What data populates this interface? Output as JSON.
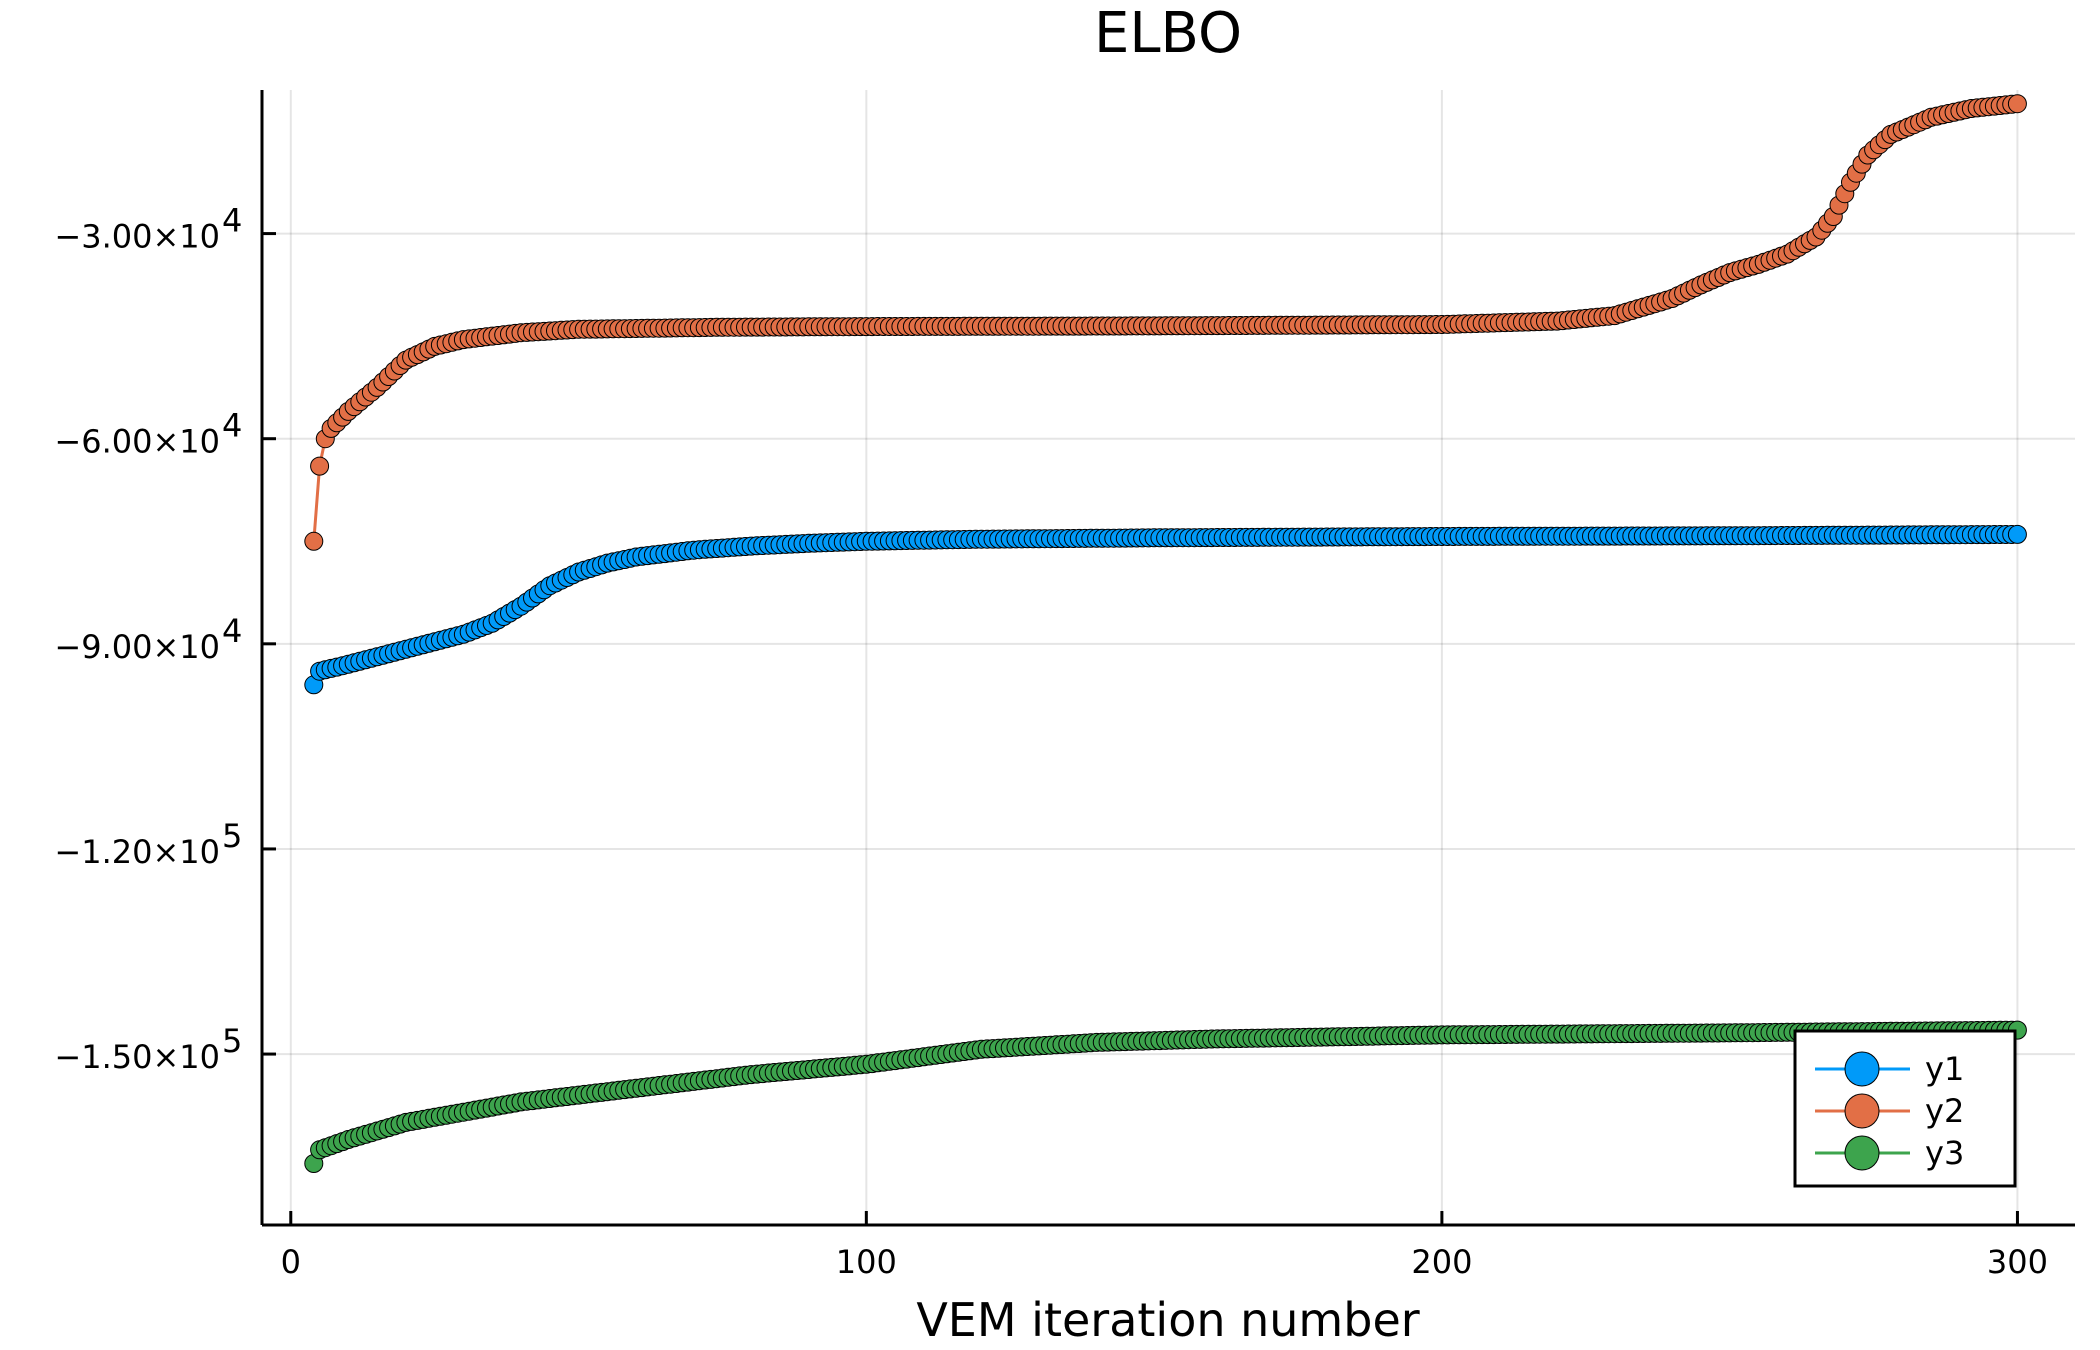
{
  "chart_data": {
    "type": "scatter",
    "title": "ELBO",
    "xlabel": "VEM iteration number",
    "ylabel": "",
    "xlim": [
      -5,
      310
    ],
    "ylim": [
      -175000,
      -9000
    ],
    "x_ticks": [
      {
        "value": 0,
        "label": "0"
      },
      {
        "value": 100,
        "label": "100"
      },
      {
        "value": 200,
        "label": "200"
      },
      {
        "value": 300,
        "label": "300"
      }
    ],
    "y_ticks": [
      {
        "value": -30000,
        "mantissa": "−3.00×10",
        "exp": "4"
      },
      {
        "value": -60000,
        "mantissa": "−6.00×10",
        "exp": "4"
      },
      {
        "value": -90000,
        "mantissa": "−9.00×10",
        "exp": "4"
      },
      {
        "value": -120000,
        "mantissa": "−1.20×10",
        "exp": "5"
      },
      {
        "value": -150000,
        "mantissa": "−1.50×10",
        "exp": "5"
      }
    ],
    "grid": true,
    "legend_position": "bottom-right",
    "x_start": 4,
    "x_end": 300,
    "series": [
      {
        "name": "y1",
        "color": "#009af9",
        "anchors": [
          [
            4,
            -96000
          ],
          [
            5,
            -94000
          ],
          [
            10,
            -93000
          ],
          [
            20,
            -90800
          ],
          [
            30,
            -88600
          ],
          [
            35,
            -87000
          ],
          [
            40,
            -84500
          ],
          [
            45,
            -81500
          ],
          [
            50,
            -79500
          ],
          [
            55,
            -78200
          ],
          [
            60,
            -77300
          ],
          [
            70,
            -76300
          ],
          [
            80,
            -75700
          ],
          [
            90,
            -75300
          ],
          [
            100,
            -75000
          ],
          [
            120,
            -74700
          ],
          [
            150,
            -74500
          ],
          [
            200,
            -74300
          ],
          [
            250,
            -74200
          ],
          [
            300,
            -74000
          ]
        ]
      },
      {
        "name": "y2",
        "color": "#e26f46",
        "anchors": [
          [
            4,
            -75000
          ],
          [
            5,
            -64000
          ],
          [
            6,
            -60000
          ],
          [
            7,
            -58500
          ],
          [
            10,
            -56000
          ],
          [
            15,
            -52500
          ],
          [
            20,
            -48500
          ],
          [
            25,
            -46500
          ],
          [
            30,
            -45500
          ],
          [
            40,
            -44500
          ],
          [
            50,
            -44000
          ],
          [
            75,
            -43700
          ],
          [
            100,
            -43600
          ],
          [
            150,
            -43500
          ],
          [
            200,
            -43300
          ],
          [
            220,
            -42800
          ],
          [
            230,
            -42000
          ],
          [
            240,
            -39500
          ],
          [
            245,
            -37500
          ],
          [
            250,
            -35700
          ],
          [
            255,
            -34500
          ],
          [
            260,
            -33000
          ],
          [
            265,
            -30500
          ],
          [
            268,
            -27500
          ],
          [
            271,
            -22500
          ],
          [
            274,
            -18500
          ],
          [
            278,
            -15500
          ],
          [
            285,
            -13000
          ],
          [
            292,
            -11700
          ],
          [
            300,
            -11000
          ]
        ]
      },
      {
        "name": "y3",
        "color": "#3da44d",
        "anchors": [
          [
            4,
            -166000
          ],
          [
            5,
            -164000
          ],
          [
            10,
            -162500
          ],
          [
            20,
            -160000
          ],
          [
            40,
            -157000
          ],
          [
            60,
            -155000
          ],
          [
            80,
            -153000
          ],
          [
            100,
            -151500
          ],
          [
            120,
            -149300
          ],
          [
            140,
            -148300
          ],
          [
            160,
            -147800
          ],
          [
            200,
            -147200
          ],
          [
            250,
            -146900
          ],
          [
            300,
            -146500
          ]
        ]
      }
    ]
  }
}
